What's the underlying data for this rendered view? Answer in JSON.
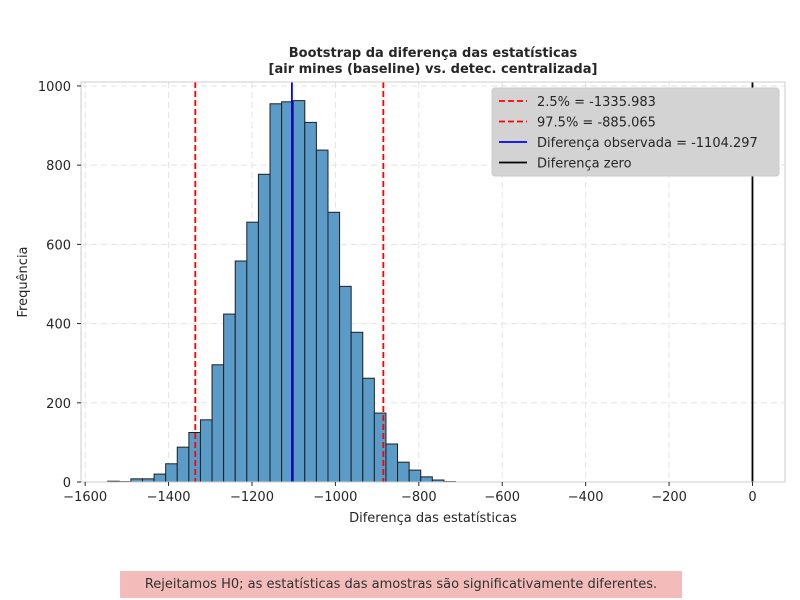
{
  "chart_data": {
    "type": "bar",
    "title": "Bootstrap da diferença das estatísticas\n[air mines (baseline) vs. detec. centralizada]",
    "xlabel": "Diferença das estatísticas",
    "ylabel": "Frequência",
    "xlim": [
      -1610,
      78
    ],
    "ylim": [
      0,
      1010
    ],
    "grid": true,
    "legend_position": "top-right",
    "xticks": [
      -1600,
      -1400,
      -1200,
      -1000,
      -800,
      -600,
      -400,
      -200,
      0
    ],
    "yticks": [
      0,
      200,
      400,
      600,
      800,
      1000
    ],
    "bin_width": 27.8,
    "bins": [
      {
        "left": -1546,
        "count": 2
      },
      {
        "left": -1518.2,
        "count": 1
      },
      {
        "left": -1490.4,
        "count": 8
      },
      {
        "left": -1462.6,
        "count": 8
      },
      {
        "left": -1434.8,
        "count": 20
      },
      {
        "left": -1407,
        "count": 46
      },
      {
        "left": -1379.2,
        "count": 88
      },
      {
        "left": -1351.4,
        "count": 125
      },
      {
        "left": -1323.6,
        "count": 157
      },
      {
        "left": -1295.8,
        "count": 296
      },
      {
        "left": -1268,
        "count": 424
      },
      {
        "left": -1240.2,
        "count": 558
      },
      {
        "left": -1212.4,
        "count": 656
      },
      {
        "left": -1184.6,
        "count": 777
      },
      {
        "left": -1156.8,
        "count": 955
      },
      {
        "left": -1129,
        "count": 960
      },
      {
        "left": -1101.2,
        "count": 963
      },
      {
        "left": -1073.4,
        "count": 908
      },
      {
        "left": -1045.6,
        "count": 838
      },
      {
        "left": -1017.8,
        "count": 681
      },
      {
        "left": -990,
        "count": 494
      },
      {
        "left": -962.2,
        "count": 378
      },
      {
        "left": -934.4,
        "count": 262
      },
      {
        "left": -906.6,
        "count": 174
      },
      {
        "left": -878.8,
        "count": 96
      },
      {
        "left": -851,
        "count": 50
      },
      {
        "left": -823.2,
        "count": 30
      },
      {
        "left": -795.4,
        "count": 13
      },
      {
        "left": -767.6,
        "count": 5
      },
      {
        "left": -739.8,
        "count": 1
      }
    ],
    "vlines": [
      {
        "x": -1335.983,
        "label": "2.5% = -1335.983",
        "color": "#ff0000",
        "style": "dashed"
      },
      {
        "x": -885.065,
        "label": "97.5% = -885.065",
        "color": "#ff0000",
        "style": "dashed"
      },
      {
        "x": -1104.297,
        "label": "Diferença observada = -1104.297",
        "color": "#0000ff",
        "style": "solid"
      },
      {
        "x": 0,
        "label": "Diferença zero",
        "color": "#000000",
        "style": "solid"
      }
    ],
    "bar_color": "#5b9bc8",
    "bar_edge_color": "#1f1f1f"
  },
  "conclusion": "Rejeitamos H0; as estatísticas das amostras são significativamente diferentes."
}
